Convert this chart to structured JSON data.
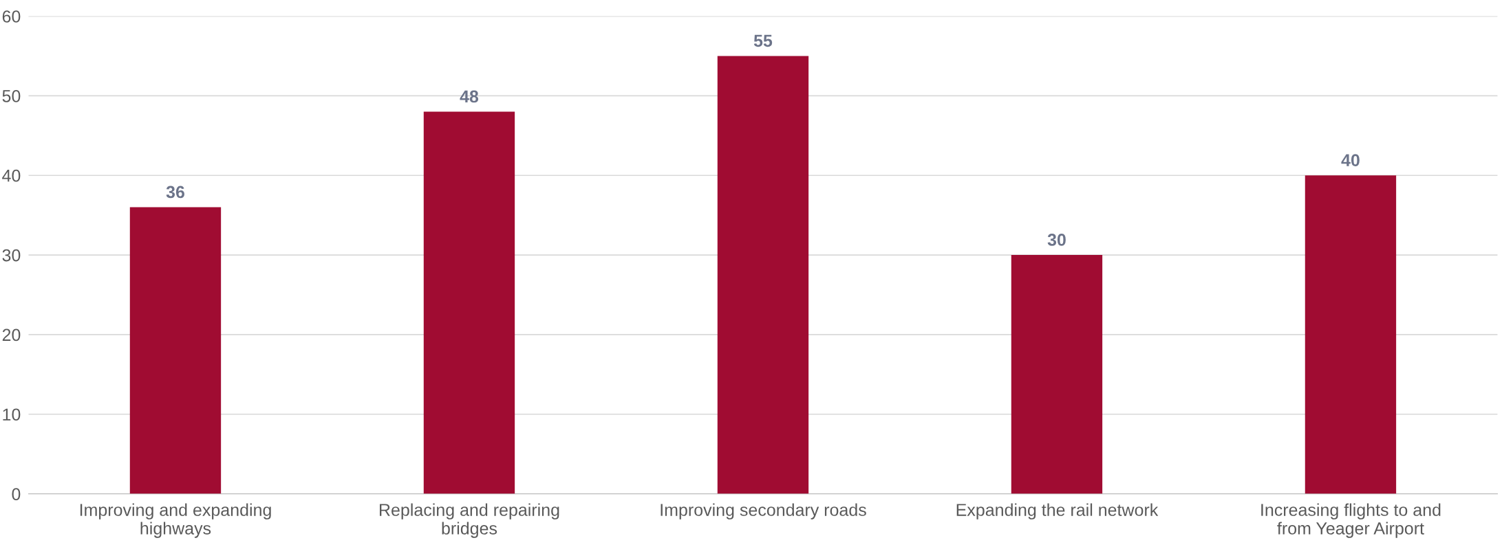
{
  "chart_data": {
    "type": "bar",
    "categories": [
      "Improving and expanding highways",
      "Replacing and repairing bridges",
      "Improving secondary roads",
      "Expanding the rail network",
      "Increasing flights to and from Yeager Airport"
    ],
    "values": [
      36,
      48,
      55,
      30,
      40
    ],
    "color": "#a00c32",
    "ylim": [
      0,
      60
    ],
    "yticks": [
      0,
      10,
      20,
      30,
      40,
      50,
      60
    ],
    "grid": "y",
    "data_labels": true
  }
}
